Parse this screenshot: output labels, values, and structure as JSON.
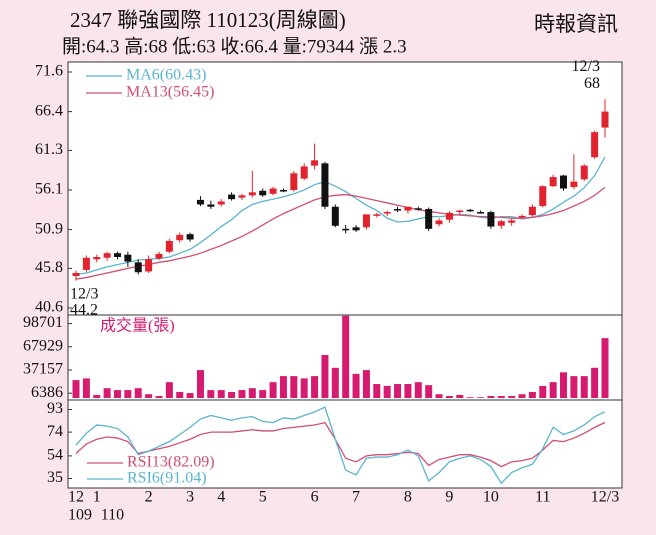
{
  "title": "2347  聯強國際 110123(周線圖)",
  "subtitle": "開:64.3 高:68 低:63 收:66.4 量:79344 漲 2.3",
  "source": "時報資訊",
  "chart_data": [
    {
      "type": "candlestick",
      "categories": [
        "12",
        null,
        "1",
        null,
        null,
        null,
        null,
        "2",
        null,
        null,
        null,
        "3",
        null,
        null,
        "4",
        null,
        null,
        null,
        "5",
        null,
        null,
        null,
        null,
        "6",
        null,
        null,
        null,
        "7",
        null,
        null,
        null,
        null,
        "8",
        null,
        null,
        null,
        "9",
        null,
        null,
        null,
        "10",
        null,
        null,
        null,
        null,
        "11",
        null,
        null,
        null,
        null,
        null,
        "12/3"
      ],
      "sublabels": [
        "109",
        null,
        "110",
        null,
        null,
        null,
        null,
        null,
        null,
        null,
        null,
        null,
        null,
        null,
        null,
        null,
        null,
        null,
        null,
        null,
        null,
        null,
        null,
        null,
        null,
        null,
        null,
        null,
        null,
        null,
        null,
        null,
        null,
        null,
        null,
        null,
        null,
        null,
        null,
        null,
        null,
        null,
        null,
        null,
        null,
        null,
        null,
        null,
        null,
        null,
        null,
        null
      ],
      "open": [
        44.8,
        45.6,
        47.0,
        47.2,
        47.8,
        47.6,
        46.6,
        45.4,
        47.1,
        48.0,
        49.5,
        50.3,
        54.8,
        54.2,
        54.2,
        55.5,
        55.1,
        55.4,
        56.0,
        55.6,
        56.1,
        56.1,
        57.6,
        59.3,
        59.6,
        53.9,
        51.0,
        51.2,
        51.2,
        52.8,
        53.0,
        53.6,
        53.4,
        53.7,
        53.6,
        51.6,
        52.2,
        53.2,
        53.5,
        53.2,
        53.2,
        51.4,
        51.8,
        52.5,
        52.8,
        54.0,
        56.6,
        58.0,
        56.5,
        57.5,
        60.4,
        64.3
      ],
      "high": [
        45.5,
        47.5,
        47.6,
        48.0,
        48.0,
        48.0,
        47.0,
        47.5,
        48.0,
        49.7,
        50.5,
        50.5,
        55.3,
        54.7,
        54.9,
        55.8,
        55.6,
        58.6,
        56.3,
        56.5,
        56.3,
        58.6,
        59.6,
        62.2,
        59.8,
        54.2,
        51.5,
        51.5,
        52.9,
        53.1,
        53.4,
        53.9,
        53.9,
        53.9,
        53.8,
        52.4,
        53.3,
        53.5,
        53.6,
        53.4,
        53.4,
        52.2,
        52.3,
        52.9,
        54.2,
        56.7,
        58.1,
        58.1,
        60.8,
        59.5,
        63.9,
        68
      ],
      "low": [
        44.2,
        45.3,
        46.6,
        46.8,
        47.0,
        46.0,
        45.0,
        45.2,
        46.9,
        47.8,
        49.2,
        49.3,
        54.0,
        53.6,
        53.9,
        54.7,
        54.8,
        55.1,
        55.2,
        55.4,
        55.8,
        55.9,
        57.4,
        58.8,
        53.6,
        51.2,
        50.4,
        50.6,
        50.9,
        52.5,
        52.7,
        53.2,
        53.0,
        53.4,
        50.7,
        51.3,
        51.8,
        52.9,
        53.2,
        53.0,
        51.0,
        51.0,
        51.4,
        52.4,
        52.6,
        53.8,
        56.5,
        56.0,
        56.2,
        57.3,
        60.2,
        63
      ],
      "close": [
        45.2,
        47.2,
        47.3,
        47.8,
        47.3,
        46.7,
        45.3,
        47.0,
        47.7,
        49.4,
        50.2,
        49.6,
        54.2,
        53.9,
        54.6,
        54.9,
        55.4,
        55.8,
        55.4,
        56.3,
        56.0,
        58.3,
        59.2,
        60.0,
        53.9,
        51.4,
        50.9,
        50.8,
        52.9,
        52.9,
        53.2,
        53.4,
        53.9,
        53.6,
        51.0,
        52.1,
        53.1,
        53.4,
        53.3,
        53.1,
        51.3,
        52.0,
        52.1,
        52.7,
        53.9,
        56.6,
        57.8,
        56.3,
        57.2,
        59.3,
        63.7,
        66.4
      ],
      "up_color": "#e2232e",
      "down_color": "#111111",
      "series": [
        {
          "name": "MA6(60.43)",
          "color": "#5ab4d0",
          "values": [
            45.0,
            45.2,
            45.6,
            46.0,
            46.3,
            46.6,
            46.9,
            47.0,
            47.1,
            47.3,
            47.8,
            48.3,
            49.2,
            50.2,
            51.3,
            52.2,
            53.4,
            54.2,
            54.6,
            54.9,
            55.2,
            55.6,
            56.1,
            56.8,
            57.2,
            56.6,
            55.9,
            55.0,
            54.1,
            53.4,
            52.4,
            51.9,
            52.0,
            52.3,
            52.6,
            52.6,
            52.7,
            52.9,
            52.8,
            52.5,
            52.4,
            52.6,
            52.6,
            52.3,
            52.5,
            52.9,
            53.6,
            54.5,
            55.3,
            56.4,
            58.0,
            60.43
          ]
        },
        {
          "name": "MA13(56.45)",
          "color": "#d24f73",
          "values": [
            44.4,
            44.6,
            44.9,
            45.2,
            45.5,
            45.8,
            46.1,
            46.3,
            46.6,
            46.8,
            47.1,
            47.4,
            47.8,
            48.3,
            48.8,
            49.4,
            50.0,
            50.7,
            51.5,
            52.3,
            53.0,
            53.6,
            54.2,
            54.8,
            55.2,
            55.4,
            55.5,
            55.3,
            55.0,
            54.7,
            54.4,
            54.1,
            53.8,
            53.5,
            53.3,
            53.1,
            52.9,
            52.8,
            52.7,
            52.6,
            52.6,
            52.5,
            52.4,
            52.4,
            52.5,
            52.7,
            53.0,
            53.4,
            54.0,
            54.6,
            55.4,
            56.45
          ]
        }
      ],
      "annotations": [
        {
          "date": "12/3",
          "value": 44.2
        },
        {
          "date": "12/3",
          "value": 68
        }
      ],
      "ylim": [
        40.6,
        71.6
      ],
      "yticks": [
        40.6,
        45.8,
        50.9,
        56.1,
        61.3,
        66.4,
        71.6
      ]
    },
    {
      "type": "bar",
      "title": "成交量(張)",
      "color": "#d61a70",
      "values": [
        23700,
        26000,
        4000,
        13000,
        10500,
        10500,
        13000,
        5000,
        2600,
        21000,
        8000,
        6500,
        37000,
        10500,
        10500,
        8000,
        10500,
        13000,
        10500,
        21000,
        29000,
        29000,
        26000,
        29000,
        57000,
        40000,
        109000,
        32000,
        37000,
        18500,
        16000,
        18500,
        18500,
        21000,
        17000,
        5000,
        2600,
        4000,
        1000,
        1000,
        2600,
        2600,
        2600,
        5000,
        8000,
        16000,
        21000,
        34000,
        29000,
        29000,
        40000,
        79344
      ],
      "ylim": [
        0,
        110000
      ],
      "yticks": [
        6386,
        37157,
        67929,
        98701
      ]
    },
    {
      "type": "line",
      "series": [
        {
          "name": "RSI13(82.09)",
          "color": "#d24f73",
          "values": [
            56,
            64,
            68,
            70,
            69,
            66,
            56,
            58,
            60,
            62,
            65,
            68,
            72,
            74,
            74,
            74,
            75,
            76,
            75,
            75,
            77,
            78,
            79,
            80,
            82,
            68,
            52,
            49,
            54,
            55,
            55,
            56,
            57,
            56,
            46,
            51,
            53,
            55,
            55,
            53,
            50,
            45,
            49,
            50,
            52,
            59,
            67,
            66,
            69,
            73,
            78,
            82.09
          ]
        },
        {
          "name": "RSI6(91.04)",
          "color": "#5ab4d0",
          "values": [
            63,
            73,
            80,
            79,
            77,
            70,
            55,
            58,
            62,
            66,
            72,
            78,
            85,
            88,
            86,
            84,
            86,
            87,
            83,
            82,
            86,
            85,
            88,
            91,
            95,
            68,
            42,
            38,
            52,
            53,
            53,
            55,
            59,
            54,
            33,
            40,
            49,
            52,
            54,
            51,
            45,
            31,
            40,
            44,
            47,
            60,
            78,
            72,
            75,
            80,
            87,
            91.04
          ]
        }
      ],
      "ylim": [
        27,
        101
      ],
      "yticks": [
        35,
        54,
        74,
        93
      ]
    }
  ]
}
